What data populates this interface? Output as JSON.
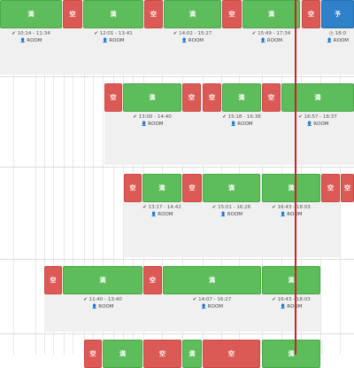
{
  "labels": {
    "free": "空",
    "full": "満",
    "reserve": "予"
  },
  "room_label": "ROOM",
  "colors": {
    "free": "#dc5a55",
    "full": "#5cbd5a",
    "reserve": "#2f82c9",
    "now_line": "#c8242a"
  },
  "rows": [
    {
      "bars": [
        "full",
        "free",
        "full",
        "free",
        "full",
        "free",
        "full",
        "free",
        "reserve"
      ],
      "slots": [
        {
          "icon": "check-icon",
          "time": "10:14 - 11:34"
        },
        {
          "icon": "check-icon",
          "time": "12:01 - 13:41"
        },
        {
          "icon": "check-icon",
          "time": "14:02 - 15:27"
        },
        {
          "icon": "check-icon",
          "time": "15:49 - 17:34"
        },
        {
          "icon": "clock-icon",
          "time": "18:0"
        }
      ]
    },
    {
      "bars": [
        "free",
        "full",
        "free",
        "free",
        "full",
        "free",
        "full"
      ],
      "slots": [
        {
          "icon": "check-icon",
          "time": "13:00 - 14:40"
        },
        {
          "icon": "check-icon",
          "time": "15:18 - 16:38"
        },
        {
          "icon": "check-icon",
          "time": "16:57 - 18:37"
        }
      ]
    },
    {
      "bars": [
        "free",
        "full",
        "free",
        "full",
        "full",
        "free",
        "free"
      ],
      "slots": [
        {
          "icon": "check-icon",
          "time": "13:17 - 14:42"
        },
        {
          "icon": "check-icon",
          "time": "15:01 - 16:26"
        },
        {
          "icon": "check-icon",
          "time": "16:43 - 18:03"
        }
      ]
    },
    {
      "bars": [
        "free",
        "full",
        "free",
        "full",
        "full"
      ],
      "slots": [
        {
          "icon": "check-icon",
          "time": "11:40 - 13:40"
        },
        {
          "icon": "check-icon",
          "time": "14:07 - 16:27"
        },
        {
          "icon": "check-icon",
          "time": "16:43 - 18:03"
        }
      ]
    },
    {
      "bars": [
        "free",
        "full",
        "free",
        "full",
        "free",
        "full"
      ]
    }
  ]
}
